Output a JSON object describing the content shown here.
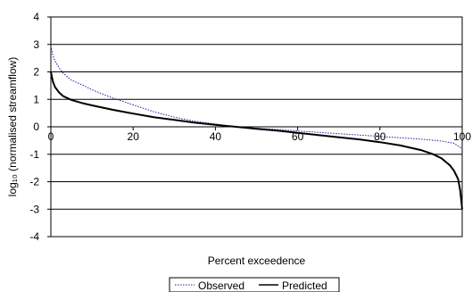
{
  "chart_data": {
    "type": "line",
    "xlabel": "Percent exceedence",
    "ylabel": "log₁₀ (normalised streamflow)",
    "xlim": [
      0,
      100
    ],
    "ylim": [
      -4,
      4
    ],
    "x_ticks": [
      "0",
      "20",
      "40",
      "60",
      "80",
      "100"
    ],
    "y_ticks": [
      "4",
      "3",
      "2",
      "1",
      "0",
      "-1",
      "-2",
      "-3",
      "-4"
    ],
    "grid": "horizontal",
    "legend_position": "bottom",
    "series": [
      {
        "name": "Observed",
        "style": "dotted",
        "color": "#1f1f9f",
        "x": [
          0,
          0.5,
          1,
          2,
          3,
          5,
          8,
          10,
          15,
          20,
          25,
          30,
          35,
          40,
          45,
          50,
          55,
          60,
          65,
          70,
          75,
          80,
          85,
          90,
          95,
          98,
          99,
          100
        ],
        "y": [
          2.95,
          2.6,
          2.4,
          2.15,
          1.95,
          1.7,
          1.5,
          1.35,
          1.05,
          0.8,
          0.55,
          0.35,
          0.2,
          0.1,
          0.0,
          -0.05,
          -0.1,
          -0.15,
          -0.2,
          -0.25,
          -0.3,
          -0.35,
          -0.4,
          -0.45,
          -0.52,
          -0.6,
          -0.7,
          -0.8
        ]
      },
      {
        "name": "Predicted",
        "style": "solid",
        "color": "#000000",
        "x": [
          0,
          0.5,
          1,
          2,
          3,
          5,
          8,
          10,
          15,
          20,
          25,
          30,
          35,
          40,
          45,
          50,
          55,
          60,
          65,
          70,
          75,
          80,
          85,
          90,
          93,
          95,
          97,
          98,
          99,
          99.5,
          100
        ],
        "y": [
          2.0,
          1.65,
          1.45,
          1.25,
          1.12,
          0.98,
          0.85,
          0.78,
          0.62,
          0.48,
          0.35,
          0.25,
          0.15,
          0.07,
          0.0,
          -0.07,
          -0.14,
          -0.22,
          -0.3,
          -0.38,
          -0.46,
          -0.56,
          -0.68,
          -0.85,
          -1.0,
          -1.15,
          -1.4,
          -1.6,
          -1.9,
          -2.3,
          -3.0
        ]
      }
    ]
  }
}
